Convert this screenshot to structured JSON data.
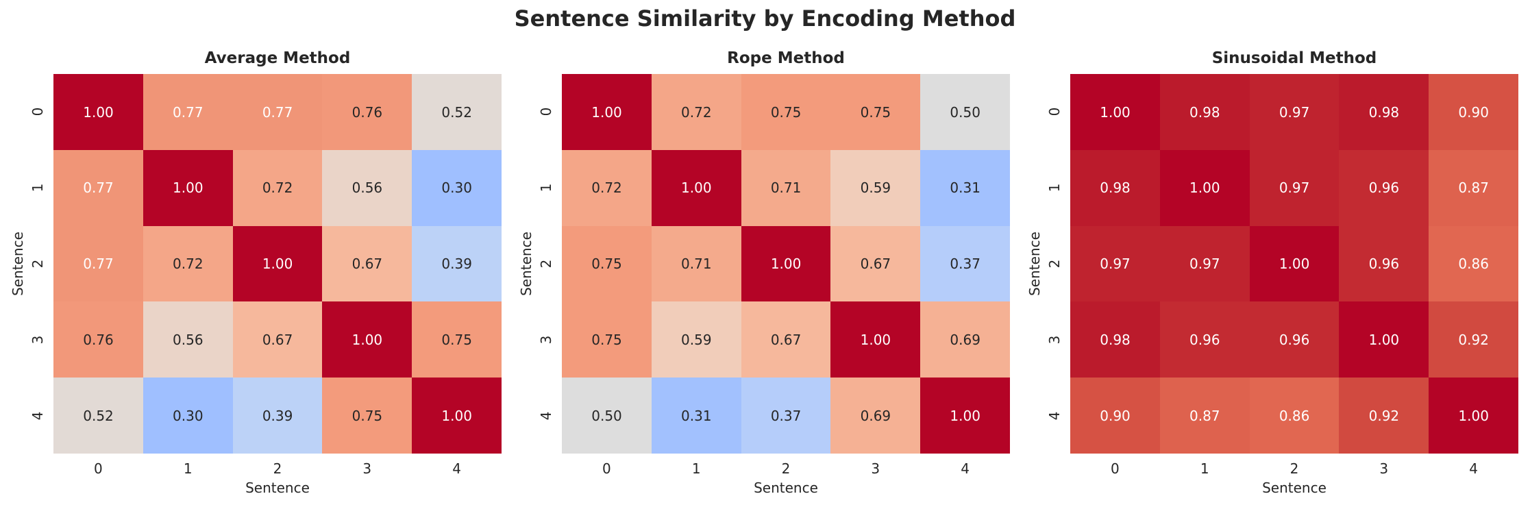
{
  "chart_data": {
    "title": "Sentence Similarity by Encoding Method",
    "type": "heatmap",
    "colormap": "coolwarm",
    "color_range": [
      0,
      1
    ],
    "panels": [
      {
        "title": "Average Method",
        "xlabel": "Sentence",
        "ylabel": "Sentence",
        "x_ticks": [
          "0",
          "1",
          "2",
          "3",
          "4"
        ],
        "y_ticks": [
          "0",
          "1",
          "2",
          "3",
          "4"
        ],
        "values": [
          [
            1.0,
            0.77,
            0.77,
            0.76,
            0.52
          ],
          [
            0.77,
            1.0,
            0.72,
            0.56,
            0.3
          ],
          [
            0.77,
            0.72,
            1.0,
            0.67,
            0.39
          ],
          [
            0.76,
            0.56,
            0.67,
            1.0,
            0.75
          ],
          [
            0.52,
            0.3,
            0.39,
            0.75,
            1.0
          ]
        ]
      },
      {
        "title": "Rope Method",
        "xlabel": "Sentence",
        "ylabel": "Sentence",
        "x_ticks": [
          "0",
          "1",
          "2",
          "3",
          "4"
        ],
        "y_ticks": [
          "0",
          "1",
          "2",
          "3",
          "4"
        ],
        "values": [
          [
            1.0,
            0.72,
            0.75,
            0.75,
            0.5
          ],
          [
            0.72,
            1.0,
            0.71,
            0.59,
            0.31
          ],
          [
            0.75,
            0.71,
            1.0,
            0.67,
            0.37
          ],
          [
            0.75,
            0.59,
            0.67,
            1.0,
            0.69
          ],
          [
            0.5,
            0.31,
            0.37,
            0.69,
            1.0
          ]
        ]
      },
      {
        "title": "Sinusoidal Method",
        "xlabel": "Sentence",
        "ylabel": "Sentence",
        "x_ticks": [
          "0",
          "1",
          "2",
          "3",
          "4"
        ],
        "y_ticks": [
          "0",
          "1",
          "2",
          "3",
          "4"
        ],
        "values": [
          [
            1.0,
            0.98,
            0.97,
            0.98,
            0.9
          ],
          [
            0.98,
            1.0,
            0.97,
            0.96,
            0.87
          ],
          [
            0.97,
            0.97,
            1.0,
            0.96,
            0.86
          ],
          [
            0.98,
            0.96,
            0.96,
            1.0,
            0.92
          ],
          [
            0.9,
            0.87,
            0.86,
            0.92,
            1.0
          ]
        ]
      }
    ]
  }
}
